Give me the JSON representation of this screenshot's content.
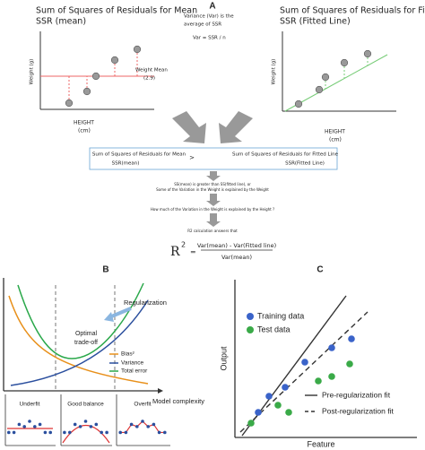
{
  "panel_a": {
    "label": "A",
    "left_plot": {
      "title": [
        "Sum of Squares of Residuals for Mean",
        "SSR (mean)"
      ],
      "y_label": "Weight (g)",
      "x_label": [
        "HEIGHT",
        "(cm)"
      ],
      "mean_label": [
        "Weight Mean",
        "(2.9)"
      ]
    },
    "center_note": [
      "Variance (Var) is the",
      "average of SSR",
      "Var = SSR / n"
    ],
    "right_plot": {
      "title": [
        "Sum of Squares of Residuals for Fitted Line",
        "SSR (Fitted Line)"
      ],
      "y_label": "Weight (g)",
      "x_label": [
        "HEIGHT",
        "(cm)"
      ]
    },
    "comparison": {
      "left": [
        "Sum of Squares of Residuals for Mean",
        "SSR(mean)"
      ],
      "operator": ">",
      "right": [
        "Sum of Squares of Residuals for Fitted Line",
        "SSR(Fitted Line)"
      ]
    },
    "steps": [
      "SS(mean) is greater than SS(fitted line), or",
      "Some of the Variation in the Weight is explained by the Weight",
      "How much of the Variation in the Weight is explained by the Height ?",
      "R2 calculation answers that"
    ],
    "formula": {
      "lhs": "R",
      "exponent": "2",
      "equals": "=",
      "numerator": "Var(mean) - Var(Fitted line)",
      "denominator": "Var(mean)"
    }
  },
  "panel_b": {
    "label": "B",
    "regularization": "Regularization",
    "optimum": [
      "Optimal",
      "trade-off"
    ],
    "legend": [
      "Bias²",
      "Variance",
      "Total error"
    ],
    "x_label": "Model complexity",
    "fits": [
      "Underfit",
      "Good balance",
      "Overfit"
    ]
  },
  "panel_c": {
    "label": "C",
    "legend": [
      "Training data",
      "Test data"
    ],
    "y_label": "Output",
    "x_label": "Feature",
    "fit_legend": [
      "Pre-regularization fit",
      "Post-regularization fit"
    ]
  }
}
